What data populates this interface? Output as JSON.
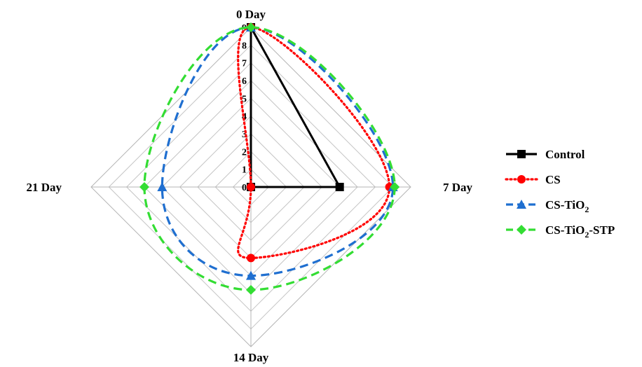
{
  "chart_data": {
    "type": "radar",
    "axes": [
      "0 Day",
      "7 Day",
      "14 Day",
      "21 Day"
    ],
    "radial_ticks": [
      "0",
      "1",
      "2",
      "3",
      "4",
      "5",
      "6",
      "7",
      "8",
      "9"
    ],
    "rmax": 9,
    "grid": true,
    "legend_position": "right",
    "series": [
      {
        "name": "Control",
        "values": [
          9,
          5,
          0,
          0
        ],
        "color": "#000000",
        "line": "solid",
        "marker": "square",
        "curve": false
      },
      {
        "name": "CS",
        "values": [
          9,
          7.8,
          4,
          0
        ],
        "color": "#ff0000",
        "line": "dotted",
        "marker": "circle",
        "curve": true
      },
      {
        "name": "CS-TiO2",
        "values": [
          9,
          8,
          5,
          5
        ],
        "color": "#1f6fd0",
        "line": "dashed",
        "marker": "triangle",
        "curve": true
      },
      {
        "name": "CS-TiO2-STP",
        "values": [
          9,
          8.1,
          5.8,
          6
        ],
        "color": "#33dd33",
        "line": "dashed",
        "marker": "diamond",
        "curve": true
      }
    ]
  },
  "legend": [
    {
      "prefix": "Control",
      "sub": "",
      "suffix": ""
    },
    {
      "prefix": "CS",
      "sub": "",
      "suffix": ""
    },
    {
      "prefix": "CS-TiO",
      "sub": "2",
      "suffix": ""
    },
    {
      "prefix": "CS-TiO",
      "sub": "2",
      "suffix": "-STP"
    }
  ]
}
